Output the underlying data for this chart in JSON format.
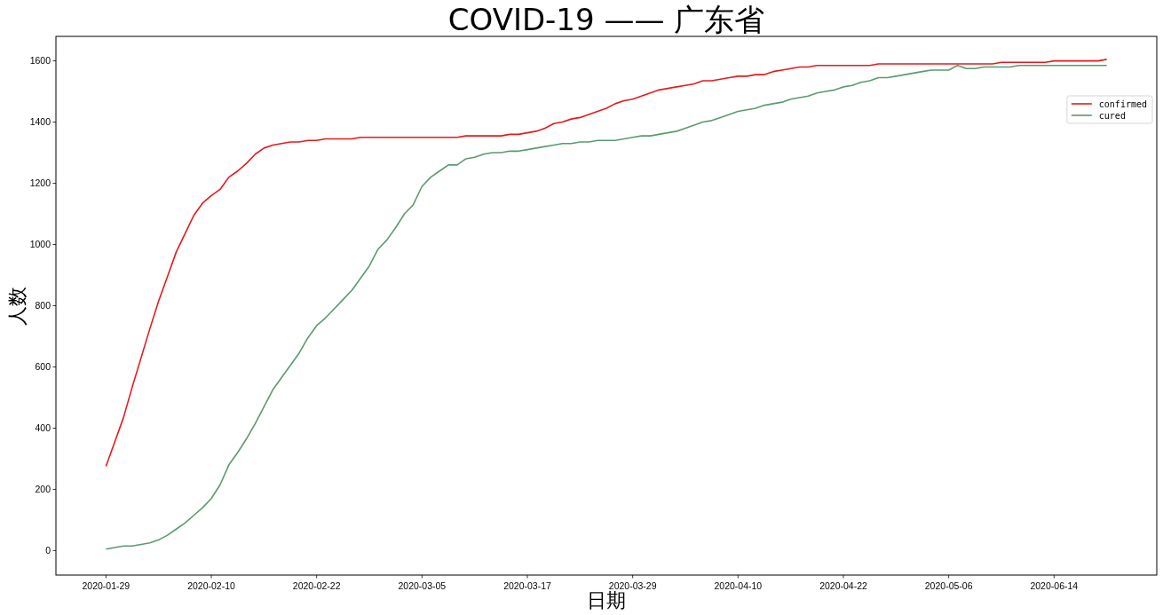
{
  "chart_data": {
    "type": "line",
    "title": "COVID-19 —— 广东省",
    "xlabel": "日期",
    "ylabel": "人数",
    "categories": [
      "2020-01-29",
      null,
      null,
      null,
      null,
      null,
      null,
      null,
      null,
      null,
      null,
      null,
      "2020-02-10",
      null,
      null,
      null,
      null,
      null,
      null,
      null,
      null,
      null,
      null,
      null,
      "2020-02-22",
      null,
      null,
      null,
      null,
      null,
      null,
      null,
      null,
      null,
      null,
      null,
      "2020-03-05",
      null,
      null,
      null,
      null,
      null,
      null,
      null,
      null,
      null,
      null,
      null,
      "2020-03-17",
      null,
      null,
      null,
      null,
      null,
      null,
      null,
      null,
      null,
      null,
      null,
      "2020-03-29",
      null,
      null,
      null,
      null,
      null,
      null,
      null,
      null,
      null,
      null,
      null,
      "2020-04-10",
      null,
      null,
      null,
      null,
      null,
      null,
      null,
      null,
      null,
      null,
      null,
      "2020-04-22",
      null,
      null,
      null,
      null,
      null,
      null,
      null,
      null,
      null,
      null,
      null,
      "2020-05-06",
      null,
      null,
      null,
      null,
      null,
      null,
      null,
      null,
      null,
      null,
      null,
      "2020-06-14",
      null,
      null,
      null,
      null,
      null,
      null
    ],
    "series": [
      {
        "name": "confirmed",
        "color": "#e41a1c",
        "values": [
          275,
          355,
          435,
          535,
          630,
          725,
          815,
          895,
          975,
          1035,
          1095,
          1135,
          1160,
          1180,
          1220,
          1240,
          1265,
          1295,
          1315,
          1325,
          1330,
          1335,
          1335,
          1340,
          1340,
          1345,
          1345,
          1345,
          1345,
          1350,
          1350,
          1350,
          1350,
          1350,
          1350,
          1350,
          1350,
          1350,
          1350,
          1350,
          1350,
          1355,
          1355,
          1355,
          1355,
          1355,
          1360,
          1360,
          1365,
          1370,
          1380,
          1395,
          1400,
          1410,
          1415,
          1425,
          1435,
          1445,
          1460,
          1470,
          1475,
          1485,
          1495,
          1505,
          1510,
          1515,
          1520,
          1525,
          1535,
          1535,
          1540,
          1545,
          1550,
          1550,
          1555,
          1555,
          1565,
          1570,
          1575,
          1580,
          1580,
          1585,
          1585,
          1585,
          1585,
          1585,
          1585,
          1585,
          1590,
          1590,
          1590,
          1590,
          1590,
          1590,
          1590,
          1590,
          1590,
          1590,
          1590,
          1590,
          1590,
          1590,
          1595,
          1595,
          1595,
          1595,
          1595,
          1595,
          1600,
          1600,
          1600,
          1600,
          1600,
          1600,
          1605
        ]
      },
      {
        "name": "cured",
        "color": "#5b9a6f",
        "values": [
          5,
          10,
          15,
          15,
          20,
          25,
          35,
          50,
          70,
          90,
          115,
          140,
          170,
          215,
          280,
          320,
          365,
          415,
          470,
          525,
          565,
          605,
          645,
          695,
          735,
          760,
          790,
          820,
          850,
          890,
          930,
          985,
          1015,
          1055,
          1100,
          1130,
          1190,
          1220,
          1240,
          1260,
          1260,
          1280,
          1285,
          1295,
          1300,
          1300,
          1305,
          1305,
          1310,
          1315,
          1320,
          1325,
          1330,
          1330,
          1335,
          1335,
          1340,
          1340,
          1340,
          1345,
          1350,
          1355,
          1355,
          1360,
          1365,
          1370,
          1380,
          1390,
          1400,
          1405,
          1415,
          1425,
          1435,
          1440,
          1445,
          1455,
          1460,
          1465,
          1475,
          1480,
          1485,
          1495,
          1500,
          1505,
          1515,
          1520,
          1530,
          1535,
          1545,
          1545,
          1550,
          1555,
          1560,
          1565,
          1570,
          1570,
          1570,
          1585,
          1575,
          1575,
          1580,
          1580,
          1580,
          1580,
          1585,
          1585,
          1585,
          1585,
          1585,
          1585,
          1585,
          1585,
          1585,
          1585,
          1585
        ]
      }
    ],
    "ylim": [
      -80,
      1680
    ],
    "yticks": [
      0,
      200,
      400,
      600,
      800,
      1000,
      1200,
      1400,
      1600
    ],
    "legend": "top right"
  }
}
